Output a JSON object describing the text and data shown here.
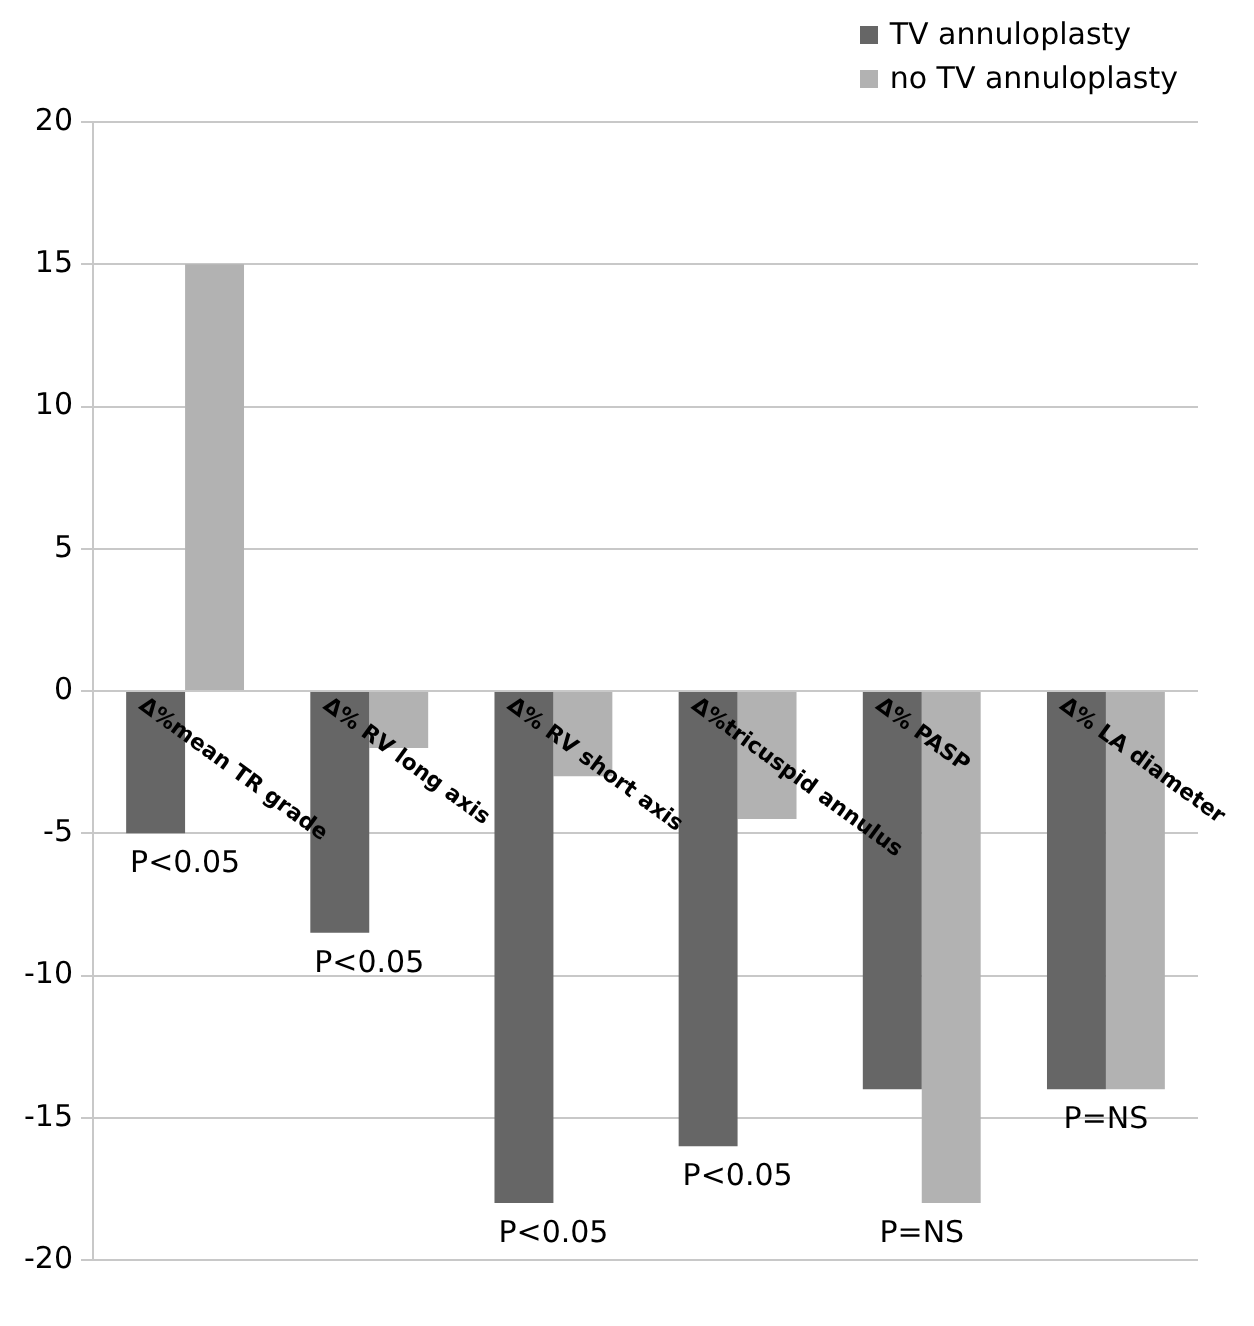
{
  "chart_data": {
    "type": "bar",
    "categories": [
      "Δ%mean TR grade",
      "Δ% RV long axis",
      "Δ% RV short axis",
      "Δ%tricuspid annulus",
      "Δ% PASP",
      "Δ% LA diameter"
    ],
    "series": [
      {
        "name": "TV annuloplasty",
        "color": "#666666",
        "values": [
          -5,
          -8.5,
          -18,
          -16,
          -14,
          -14
        ]
      },
      {
        "name": "no TV annuloplasty",
        "color": "#b2b2b2",
        "values": [
          15,
          -2,
          -3,
          -4.5,
          -18,
          -14
        ]
      }
    ],
    "ylim": [
      -20,
      20
    ],
    "yticks": [
      -20,
      -15,
      -10,
      -5,
      0,
      5,
      10,
      15,
      20
    ],
    "grid": "y",
    "legend": "top right",
    "annotations": [
      "P<0.05",
      "P<0.05",
      "P<0.05",
      "P<0.05",
      "P=NS",
      "P=NS"
    ]
  }
}
